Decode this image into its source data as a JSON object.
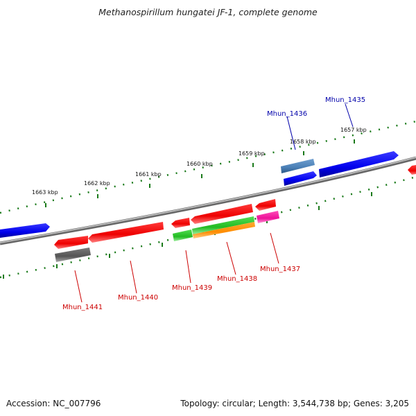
{
  "title": "Methanospirillum hungatei JF-1, complete genome",
  "footer": {
    "accession": "Accession: NC_007796",
    "summary": "Topology: circular; Length: 3,544,738 bp; Genes: 3,205"
  },
  "colors": {
    "backbone": "#8a8a8a",
    "tick": "#1a7a1a",
    "forward_label": "#0000aa",
    "reverse_label": "#cc0000"
  },
  "upper_ticks": [
    "1663 kbp",
    "1662 kbp",
    "1661 kbp",
    "1660 kbp",
    "1659 kbp",
    "1658 kbp",
    "1657 kbp"
  ],
  "genes": [
    {
      "id": "Mhun_1441",
      "label": "Mhun_1441",
      "strand": "reverse"
    },
    {
      "id": "Mhun_1440",
      "label": "Mhun_1440",
      "strand": "reverse"
    },
    {
      "id": "Mhun_1439",
      "label": "Mhun_1439",
      "strand": "reverse"
    },
    {
      "id": "Mhun_1438",
      "label": "Mhun_1438",
      "strand": "reverse"
    },
    {
      "id": "Mhun_1437",
      "label": "Mhun_1437",
      "strand": "reverse"
    },
    {
      "id": "Mhun_1436",
      "label": "Mhun_1436",
      "strand": "forward"
    },
    {
      "id": "Mhun_1435",
      "label": "Mhun_1435",
      "strand": "forward"
    }
  ]
}
